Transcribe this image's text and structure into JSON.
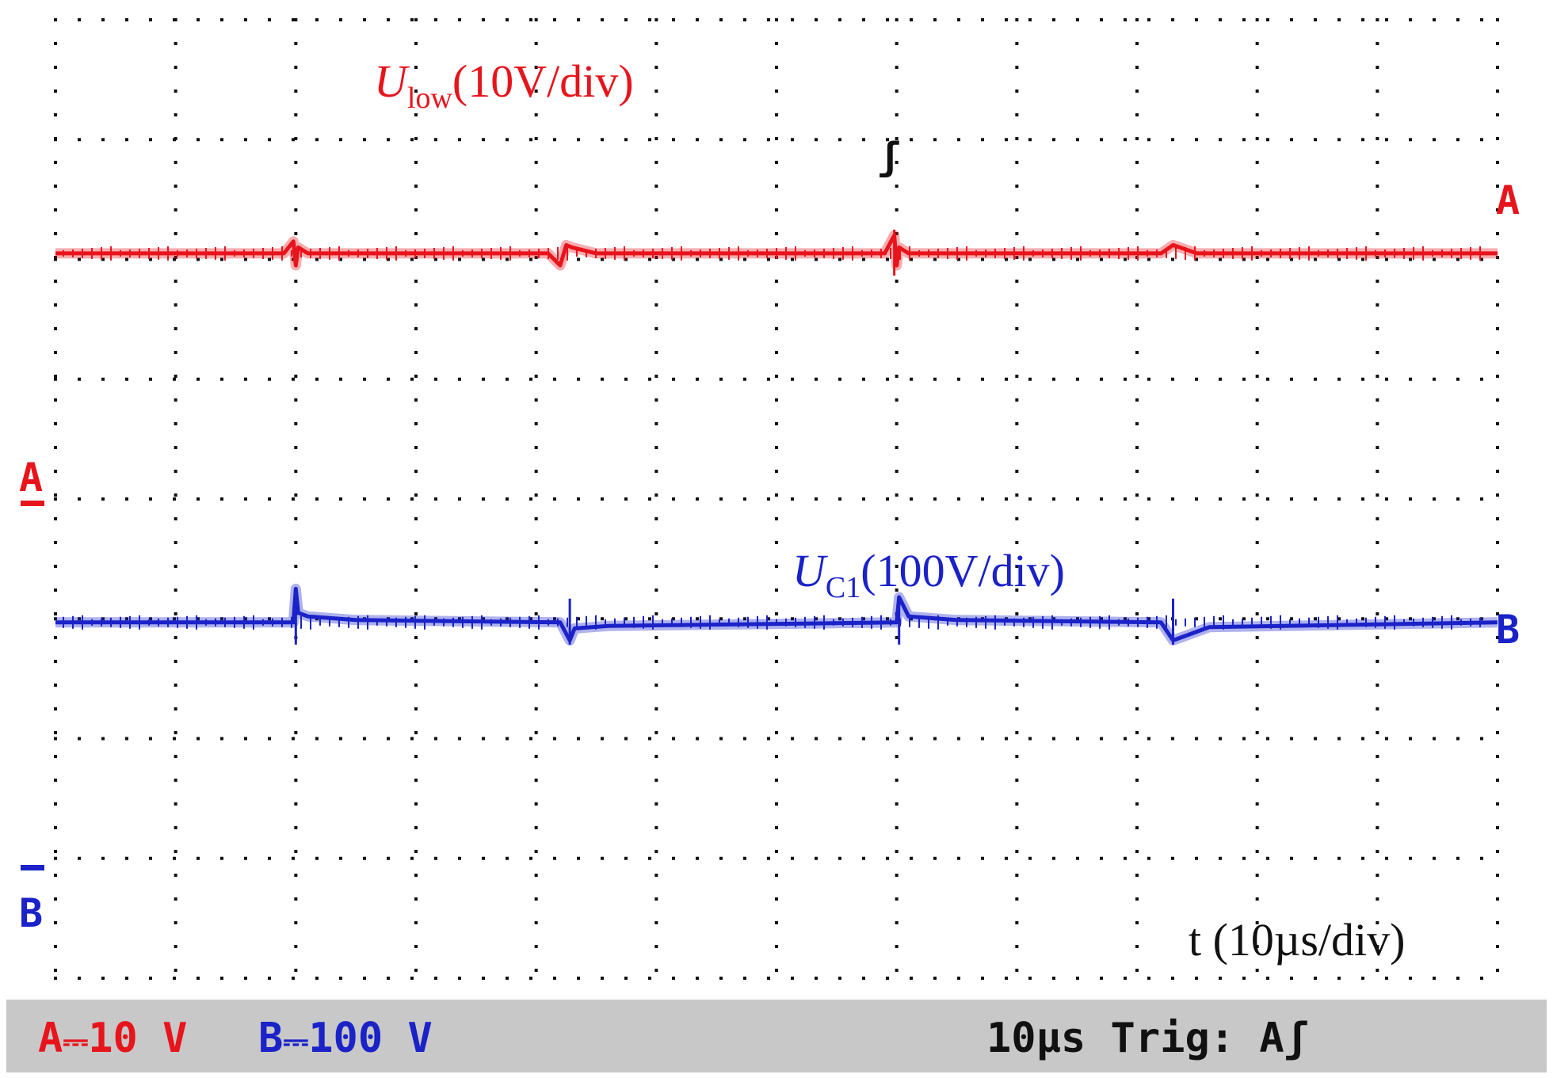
{
  "chart_data": {
    "type": "line",
    "title": "",
    "xlabel": "t (10µs/div)",
    "grid": "dotted",
    "divisions": {
      "x": 12,
      "y": 8
    },
    "series": [
      {
        "name": "Ulow(10V/div)",
        "label_main": "U",
        "label_sub": "low",
        "label_rest": "(10V/div)",
        "channel": "A",
        "color": "#e8141c",
        "scale": "10V/div",
        "ground_div": 2.54,
        "trace_div": 6.05,
        "x": [
          0,
          1.9,
          1.98,
          2.0,
          2.02,
          2.1,
          4.1,
          4.2,
          4.25,
          4.3,
          4.5,
          6.9,
          6.98,
          7.0,
          7.02,
          7.1,
          9.2,
          9.3,
          9.5,
          12.0
        ],
        "y_div": [
          6.05,
          6.05,
          6.15,
          5.95,
          6.1,
          6.05,
          6.05,
          5.95,
          6.12,
          6.1,
          6.05,
          6.05,
          6.2,
          5.95,
          6.1,
          6.05,
          6.05,
          6.12,
          6.05,
          6.05
        ]
      },
      {
        "name": "UC1(100V/div)",
        "label_main": "U",
        "label_sub": "C1",
        "label_rest": "(100V/div)",
        "channel": "B",
        "color": "#1a22c8",
        "scale": "100V/div",
        "ground_div": 0.86,
        "trace_div": 2.97,
        "x": [
          0,
          1.98,
          2.0,
          2.02,
          2.1,
          2.5,
          4.2,
          4.28,
          4.32,
          4.6,
          7.0,
          7.02,
          7.1,
          7.5,
          9.2,
          9.3,
          9.6,
          12.0
        ],
        "y_div": [
          2.97,
          2.97,
          3.25,
          3.05,
          3.02,
          2.99,
          2.97,
          2.82,
          2.92,
          2.94,
          2.97,
          3.18,
          3.02,
          2.99,
          2.97,
          2.82,
          2.93,
          2.97
        ]
      }
    ],
    "trigger_x_div": 7.0
  },
  "status_bar": {
    "ch_a_prefix": "A",
    "ch_a_value": "10 V",
    "ch_b_prefix": "B",
    "ch_b_value": "100 V",
    "timebase_trigger": "10µs Trig: A",
    "trigger_symbol": "ʃ",
    "color_a": "#e8141c",
    "color_b": "#1a22c8",
    "color_text": "#111111",
    "background": "#c8c8c8"
  },
  "markers": {
    "a_right": "A",
    "b_right": "B",
    "a_left": "A",
    "b_left": "B",
    "trigger_glyph": "ʃ"
  }
}
